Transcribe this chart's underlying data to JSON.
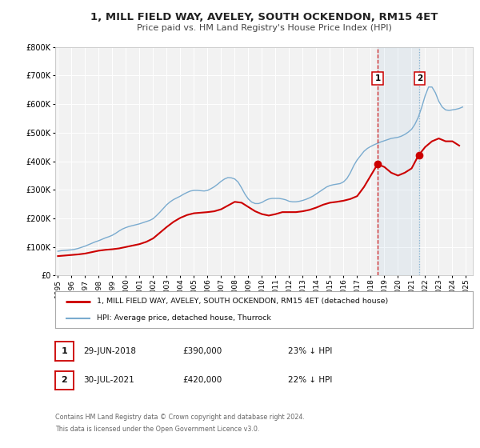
{
  "title": "1, MILL FIELD WAY, AVELEY, SOUTH OCKENDON, RM15 4ET",
  "subtitle": "Price paid vs. HM Land Registry's House Price Index (HPI)",
  "background_color": "#ffffff",
  "plot_bg_color": "#f2f2f2",
  "grid_color": "#ffffff",
  "ylim": [
    0,
    800000
  ],
  "yticks": [
    0,
    100000,
    200000,
    300000,
    400000,
    500000,
    600000,
    700000,
    800000
  ],
  "ytick_labels": [
    "£0",
    "£100K",
    "£200K",
    "£300K",
    "£400K",
    "£500K",
    "£600K",
    "£700K",
    "£800K"
  ],
  "xlim_start": 1994.8,
  "xlim_end": 2025.5,
  "xticks": [
    1995,
    1996,
    1997,
    1998,
    1999,
    2000,
    2001,
    2002,
    2003,
    2004,
    2005,
    2006,
    2007,
    2008,
    2009,
    2010,
    2011,
    2012,
    2013,
    2014,
    2015,
    2016,
    2017,
    2018,
    2019,
    2020,
    2021,
    2022,
    2023,
    2024,
    2025
  ],
  "legend_label_red": "1, MILL FIELD WAY, AVELEY, SOUTH OCKENDON, RM15 4ET (detached house)",
  "legend_label_blue": "HPI: Average price, detached house, Thurrock",
  "ann1_num": "1",
  "ann1_date": "29-JUN-2018",
  "ann1_price": "£390,000",
  "ann1_pct": "23% ↓ HPI",
  "ann1_x": 2018.5,
  "ann1_y": 390000,
  "ann2_num": "2",
  "ann2_date": "30-JUL-2021",
  "ann2_price": "£420,000",
  "ann2_pct": "22% ↓ HPI",
  "ann2_x": 2021.58,
  "ann2_y": 420000,
  "footer1": "Contains HM Land Registry data © Crown copyright and database right 2024.",
  "footer2": "This data is licensed under the Open Government Licence v3.0.",
  "red_line_color": "#cc0000",
  "blue_line_color": "#7aabcf",
  "hpi_x": [
    1995.0,
    1995.25,
    1995.5,
    1995.75,
    1996.0,
    1996.25,
    1996.5,
    1996.75,
    1997.0,
    1997.25,
    1997.5,
    1997.75,
    1998.0,
    1998.25,
    1998.5,
    1998.75,
    1999.0,
    1999.25,
    1999.5,
    1999.75,
    2000.0,
    2000.25,
    2000.5,
    2000.75,
    2001.0,
    2001.25,
    2001.5,
    2001.75,
    2002.0,
    2002.25,
    2002.5,
    2002.75,
    2003.0,
    2003.25,
    2003.5,
    2003.75,
    2004.0,
    2004.25,
    2004.5,
    2004.75,
    2005.0,
    2005.25,
    2005.5,
    2005.75,
    2006.0,
    2006.25,
    2006.5,
    2006.75,
    2007.0,
    2007.25,
    2007.5,
    2007.75,
    2008.0,
    2008.25,
    2008.5,
    2008.75,
    2009.0,
    2009.25,
    2009.5,
    2009.75,
    2010.0,
    2010.25,
    2010.5,
    2010.75,
    2011.0,
    2011.25,
    2011.5,
    2011.75,
    2012.0,
    2012.25,
    2012.5,
    2012.75,
    2013.0,
    2013.25,
    2013.5,
    2013.75,
    2014.0,
    2014.25,
    2014.5,
    2014.75,
    2015.0,
    2015.25,
    2015.5,
    2015.75,
    2016.0,
    2016.25,
    2016.5,
    2016.75,
    2017.0,
    2017.25,
    2017.5,
    2017.75,
    2018.0,
    2018.25,
    2018.5,
    2018.75,
    2019.0,
    2019.25,
    2019.5,
    2019.75,
    2020.0,
    2020.25,
    2020.5,
    2020.75,
    2021.0,
    2021.25,
    2021.5,
    2021.75,
    2022.0,
    2022.25,
    2022.5,
    2022.75,
    2023.0,
    2023.25,
    2023.5,
    2023.75,
    2024.0,
    2024.25,
    2024.5,
    2024.75
  ],
  "hpi_y": [
    85000,
    87000,
    88000,
    89000,
    90000,
    92000,
    95000,
    99000,
    103000,
    108000,
    113000,
    118000,
    122000,
    127000,
    132000,
    136000,
    141000,
    148000,
    156000,
    163000,
    168000,
    172000,
    175000,
    178000,
    181000,
    185000,
    189000,
    193000,
    199000,
    210000,
    222000,
    235000,
    248000,
    258000,
    266000,
    272000,
    278000,
    285000,
    291000,
    296000,
    298000,
    298000,
    297000,
    296000,
    298000,
    304000,
    311000,
    320000,
    330000,
    338000,
    343000,
    342000,
    338000,
    327000,
    307000,
    285000,
    268000,
    257000,
    252000,
    252000,
    256000,
    263000,
    268000,
    270000,
    270000,
    270000,
    268000,
    265000,
    260000,
    258000,
    258000,
    260000,
    263000,
    267000,
    272000,
    278000,
    286000,
    294000,
    302000,
    310000,
    315000,
    318000,
    320000,
    322000,
    328000,
    340000,
    360000,
    385000,
    405000,
    420000,
    435000,
    445000,
    452000,
    458000,
    463000,
    468000,
    472000,
    476000,
    480000,
    482000,
    484000,
    488000,
    494000,
    502000,
    512000,
    530000,
    555000,
    590000,
    630000,
    660000,
    660000,
    640000,
    610000,
    590000,
    580000,
    578000,
    580000,
    582000,
    585000,
    590000
  ],
  "price_x": [
    1995.0,
    1995.5,
    1996.0,
    1996.5,
    1997.0,
    1997.5,
    1998.0,
    1998.5,
    1999.0,
    1999.5,
    2000.0,
    2000.5,
    2001.0,
    2001.5,
    2002.0,
    2002.5,
    2003.0,
    2003.5,
    2004.0,
    2004.5,
    2005.0,
    2005.5,
    2006.0,
    2006.5,
    2007.0,
    2007.5,
    2008.0,
    2008.5,
    2009.0,
    2009.5,
    2010.0,
    2010.5,
    2011.0,
    2011.5,
    2012.0,
    2012.5,
    2013.0,
    2013.5,
    2014.0,
    2014.5,
    2015.0,
    2015.5,
    2016.0,
    2016.5,
    2017.0,
    2017.5,
    2018.0,
    2018.5,
    2019.0,
    2019.5,
    2020.0,
    2020.5,
    2021.0,
    2021.5,
    2022.0,
    2022.5,
    2023.0,
    2023.5,
    2024.0,
    2024.5
  ],
  "price_y": [
    68000,
    70000,
    72000,
    74000,
    77000,
    82000,
    87000,
    90000,
    92000,
    95000,
    100000,
    105000,
    110000,
    118000,
    130000,
    150000,
    170000,
    188000,
    202000,
    212000,
    218000,
    220000,
    222000,
    225000,
    232000,
    245000,
    258000,
    255000,
    240000,
    225000,
    215000,
    210000,
    215000,
    222000,
    222000,
    222000,
    225000,
    230000,
    238000,
    248000,
    255000,
    258000,
    262000,
    268000,
    278000,
    310000,
    350000,
    390000,
    380000,
    360000,
    350000,
    360000,
    375000,
    420000,
    450000,
    470000,
    480000,
    470000,
    470000,
    455000
  ]
}
